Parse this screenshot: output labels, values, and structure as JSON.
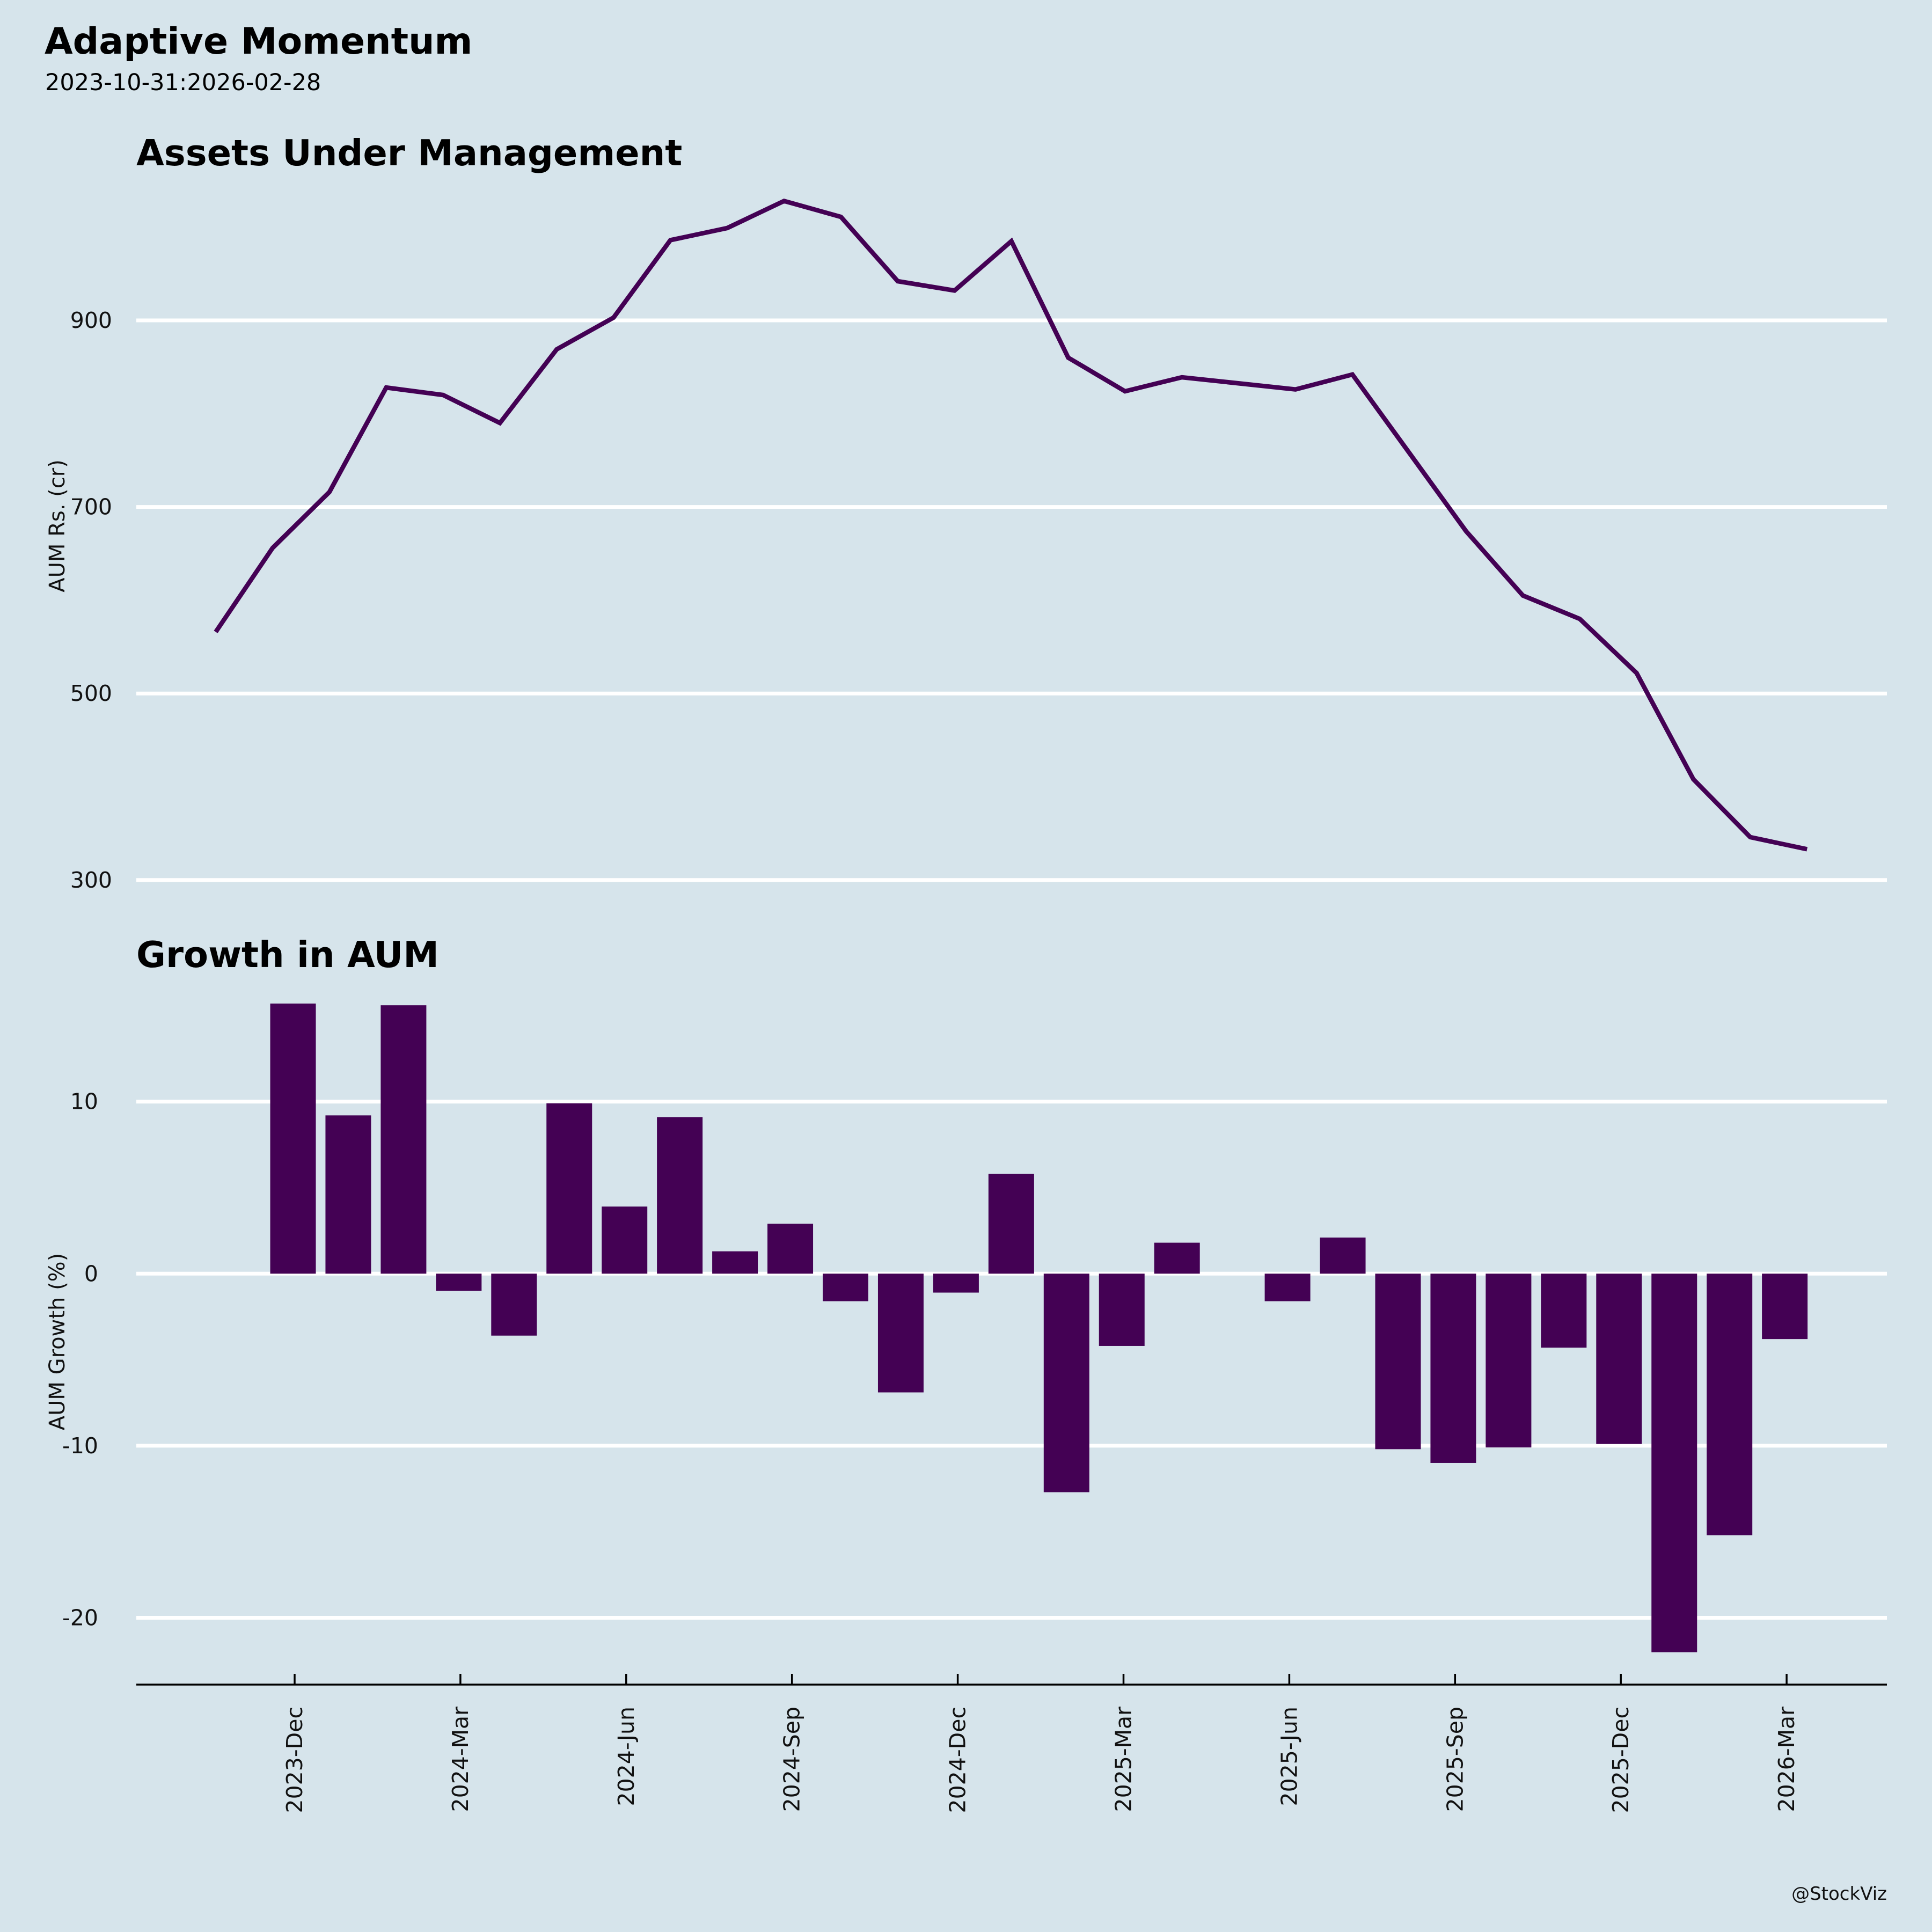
{
  "header": {
    "title": "Adaptive Momentum",
    "subtitle": "2023-10-31:2026-02-28"
  },
  "credit": "@StockViz",
  "colors": {
    "background": "#d6e4eb",
    "series": "#440154",
    "grid": "#ffffff"
  },
  "chart_data": [
    {
      "type": "line",
      "title": "Assets Under Management",
      "xlabel": "",
      "ylabel": "AUM Rs. (cr)",
      "yticks": [
        300,
        500,
        700,
        900
      ],
      "ylim": [
        300,
        1050
      ],
      "grid": true,
      "x": [
        "2023-10-31",
        "2023-11-30",
        "2023-12-31",
        "2024-01-31",
        "2024-02-29",
        "2024-03-31",
        "2024-04-30",
        "2024-05-31",
        "2024-06-30",
        "2024-07-31",
        "2024-08-31",
        "2024-09-30",
        "2024-10-31",
        "2024-11-30",
        "2024-12-31",
        "2025-01-31",
        "2025-02-28",
        "2025-03-31",
        "2025-04-30",
        "2025-05-31",
        "2025-06-30",
        "2025-07-31",
        "2025-08-31",
        "2025-09-30",
        "2025-10-31",
        "2025-11-30",
        "2025-12-31",
        "2026-01-31",
        "2026-02-28"
      ],
      "series": [
        {
          "name": "AUM",
          "values": [
            566,
            656,
            716,
            828,
            820,
            790,
            869,
            903,
            986,
            999,
            1028,
            1011,
            942,
            932,
            985,
            860,
            824,
            839,
            null,
            826,
            842,
            758,
            674,
            605,
            580,
            522,
            408,
            346,
            333
          ]
        }
      ]
    },
    {
      "type": "bar",
      "title": "Growth in AUM",
      "xlabel": "",
      "ylabel": "AUM Growth (%)",
      "yticks": [
        -20,
        -10,
        0,
        10
      ],
      "ylim": [
        -22,
        16
      ],
      "grid": true,
      "xticks": [
        "2023-Dec",
        "2024-Mar",
        "2024-Jun",
        "2024-Sep",
        "2024-Dec",
        "2025-Mar",
        "2025-Jun",
        "2025-Sep",
        "2025-Dec",
        "2026-Mar"
      ],
      "x": [
        "2023-11-30",
        "2023-12-31",
        "2024-01-31",
        "2024-02-29",
        "2024-03-31",
        "2024-04-30",
        "2024-05-31",
        "2024-06-30",
        "2024-07-31",
        "2024-08-31",
        "2024-09-30",
        "2024-10-31",
        "2024-11-30",
        "2024-12-31",
        "2025-01-31",
        "2025-02-28",
        "2025-03-31",
        "2025-04-30",
        "2025-05-31",
        "2025-06-30",
        "2025-07-31",
        "2025-08-31",
        "2025-09-30",
        "2025-10-31",
        "2025-11-30",
        "2025-12-31",
        "2026-01-31",
        "2026-02-28"
      ],
      "series": [
        {
          "name": "AUM Growth",
          "values": [
            15.7,
            9.2,
            15.6,
            -1.0,
            -3.6,
            9.9,
            3.9,
            9.1,
            1.3,
            2.9,
            -1.6,
            -6.9,
            -1.1,
            5.8,
            -12.7,
            -4.2,
            1.8,
            null,
            -1.6,
            2.1,
            -10.2,
            -11.0,
            -10.1,
            -4.3,
            -9.9,
            -22.0,
            -15.2,
            -3.8
          ]
        }
      ]
    }
  ]
}
